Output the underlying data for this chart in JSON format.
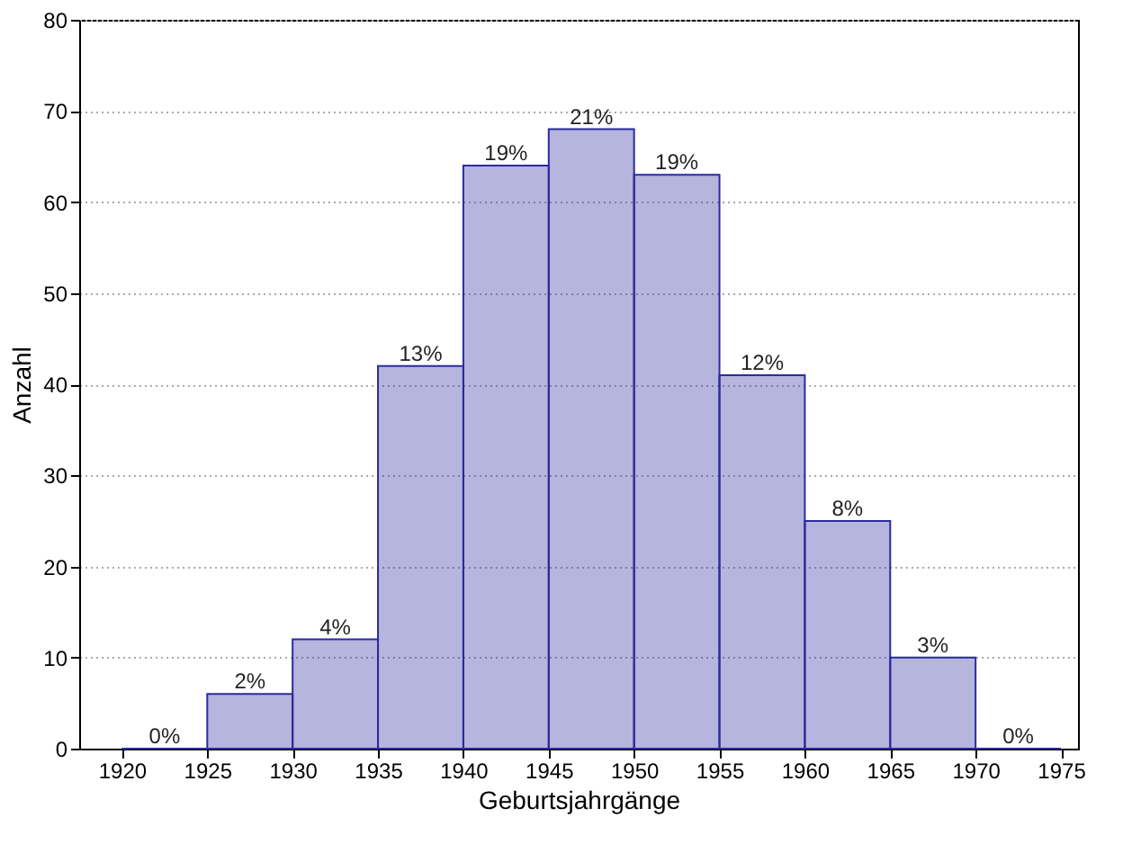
{
  "chart_data": {
    "type": "histogram",
    "xlabel": "Geburtsjahrgänge",
    "ylabel": "Anzahl",
    "bins": [
      1920,
      1925,
      1930,
      1935,
      1940,
      1945,
      1950,
      1955,
      1960,
      1965,
      1970,
      1975
    ],
    "values": [
      0,
      6,
      12,
      42,
      64,
      68,
      63,
      41,
      25,
      10,
      0
    ],
    "annotations": [
      {
        "text": "0%",
        "x": 1922.5,
        "y": 0
      },
      {
        "text": "2%",
        "x": 1927.5,
        "y": 6
      },
      {
        "text": "4%",
        "x": 1932.5,
        "y": 12
      },
      {
        "text": "13%",
        "x": 1937.5,
        "y": 42
      },
      {
        "text": "19%",
        "x": 1942.5,
        "y": 64
      },
      {
        "text": "21%",
        "x": 1947.5,
        "y": 68
      },
      {
        "text": "19%",
        "x": 1952.5,
        "y": 63
      },
      {
        "text": "12%",
        "x": 1957.5,
        "y": 41
      },
      {
        "text": "8%",
        "x": 1962.5,
        "y": 25
      },
      {
        "text": "3%",
        "x": 1967.5,
        "y": 10
      },
      {
        "text": "0%",
        "x": 1972.5,
        "y": 0
      }
    ],
    "color": "#2b2b9e",
    "xlim": [
      1917.5,
      1976
    ],
    "xticks": [
      1920,
      1925,
      1930,
      1935,
      1940,
      1945,
      1950,
      1955,
      1960,
      1965,
      1970,
      1975
    ],
    "ylim": [
      0,
      80
    ],
    "yticks": [
      0,
      10,
      20,
      30,
      40,
      50,
      60,
      70,
      80
    ],
    "grid": "y"
  }
}
